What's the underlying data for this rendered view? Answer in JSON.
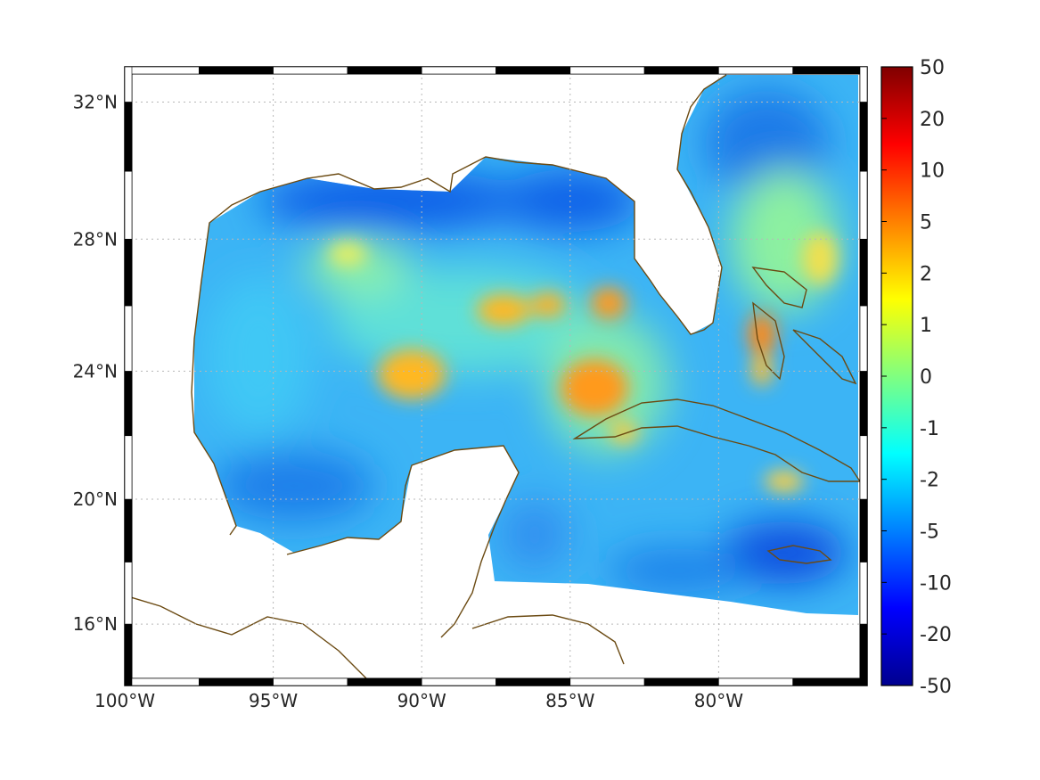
{
  "map": {
    "projection": "mercator",
    "lon_range": [
      -100,
      -75
    ],
    "lat_range": [
      14,
      33
    ],
    "lon_ticks": [
      {
        "value": -100,
        "label": "100°W"
      },
      {
        "value": -95,
        "label": "95°W"
      },
      {
        "value": -90,
        "label": "90°W"
      },
      {
        "value": -85,
        "label": "85°W"
      },
      {
        "value": -80,
        "label": "80°W"
      }
    ],
    "lat_ticks": [
      {
        "value": 16,
        "label": "16°N"
      },
      {
        "value": 20,
        "label": "20°N"
      },
      {
        "value": 24,
        "label": "24°N"
      },
      {
        "value": 28,
        "label": "28°N"
      },
      {
        "value": 32,
        "label": "32°N"
      }
    ],
    "grid": "dotted",
    "coastline_color": "#6b4a12",
    "colormap": "jet"
  },
  "colorbar": {
    "labels": [
      "50",
      "20",
      "10",
      "5",
      "2",
      "1",
      "0",
      "-1",
      "-2",
      "-5",
      "-10",
      "-20",
      "-50"
    ],
    "colors": [
      "#800000",
      "#ff0000",
      "#ff8000",
      "#ffff00",
      "#80ff80",
      "#00ffff",
      "#0080ff",
      "#0000ff",
      "#00008f"
    ]
  },
  "chart_data": {
    "type": "heatmap",
    "title": "",
    "x_ticks": [
      "100°W",
      "95°W",
      "90°W",
      "85°W",
      "80°W"
    ],
    "y_ticks": [
      "16°N",
      "20°N",
      "24°N",
      "28°N",
      "32°N"
    ],
    "colorbar_ticks": [
      50,
      20,
      10,
      5,
      2,
      1,
      0,
      -1,
      -2,
      -5,
      -10,
      -20,
      -50
    ],
    "features": [
      {
        "lon": -89.5,
        "lat": 23.8,
        "value": 3
      },
      {
        "lon": -87.5,
        "lat": 25.7,
        "value": 3
      },
      {
        "lon": -85.8,
        "lat": 25.8,
        "value": 3
      },
      {
        "lon": -83.9,
        "lat": 25.9,
        "value": 5
      },
      {
        "lon": -84.2,
        "lat": 23.2,
        "value": 5
      },
      {
        "lon": -78.5,
        "lat": 25.0,
        "value": 5
      },
      {
        "lon": -78.6,
        "lat": 23.8,
        "value": 3
      },
      {
        "lon": -77.4,
        "lat": 20.5,
        "value": 2
      },
      {
        "lon": -92.7,
        "lat": 27.5,
        "value": 1
      },
      {
        "lon": -77.1,
        "lat": 28.3,
        "value": 2
      },
      {
        "lon": -90.5,
        "lat": 28.6,
        "value": -10
      },
      {
        "lon": -84.8,
        "lat": 28.6,
        "value": -10
      },
      {
        "lon": -79.2,
        "lat": 29.5,
        "value": -10
      },
      {
        "lon": -76.8,
        "lat": 17.2,
        "value": -10
      },
      {
        "lon": -94.0,
        "lat": 20.2,
        "value": -5
      }
    ]
  }
}
